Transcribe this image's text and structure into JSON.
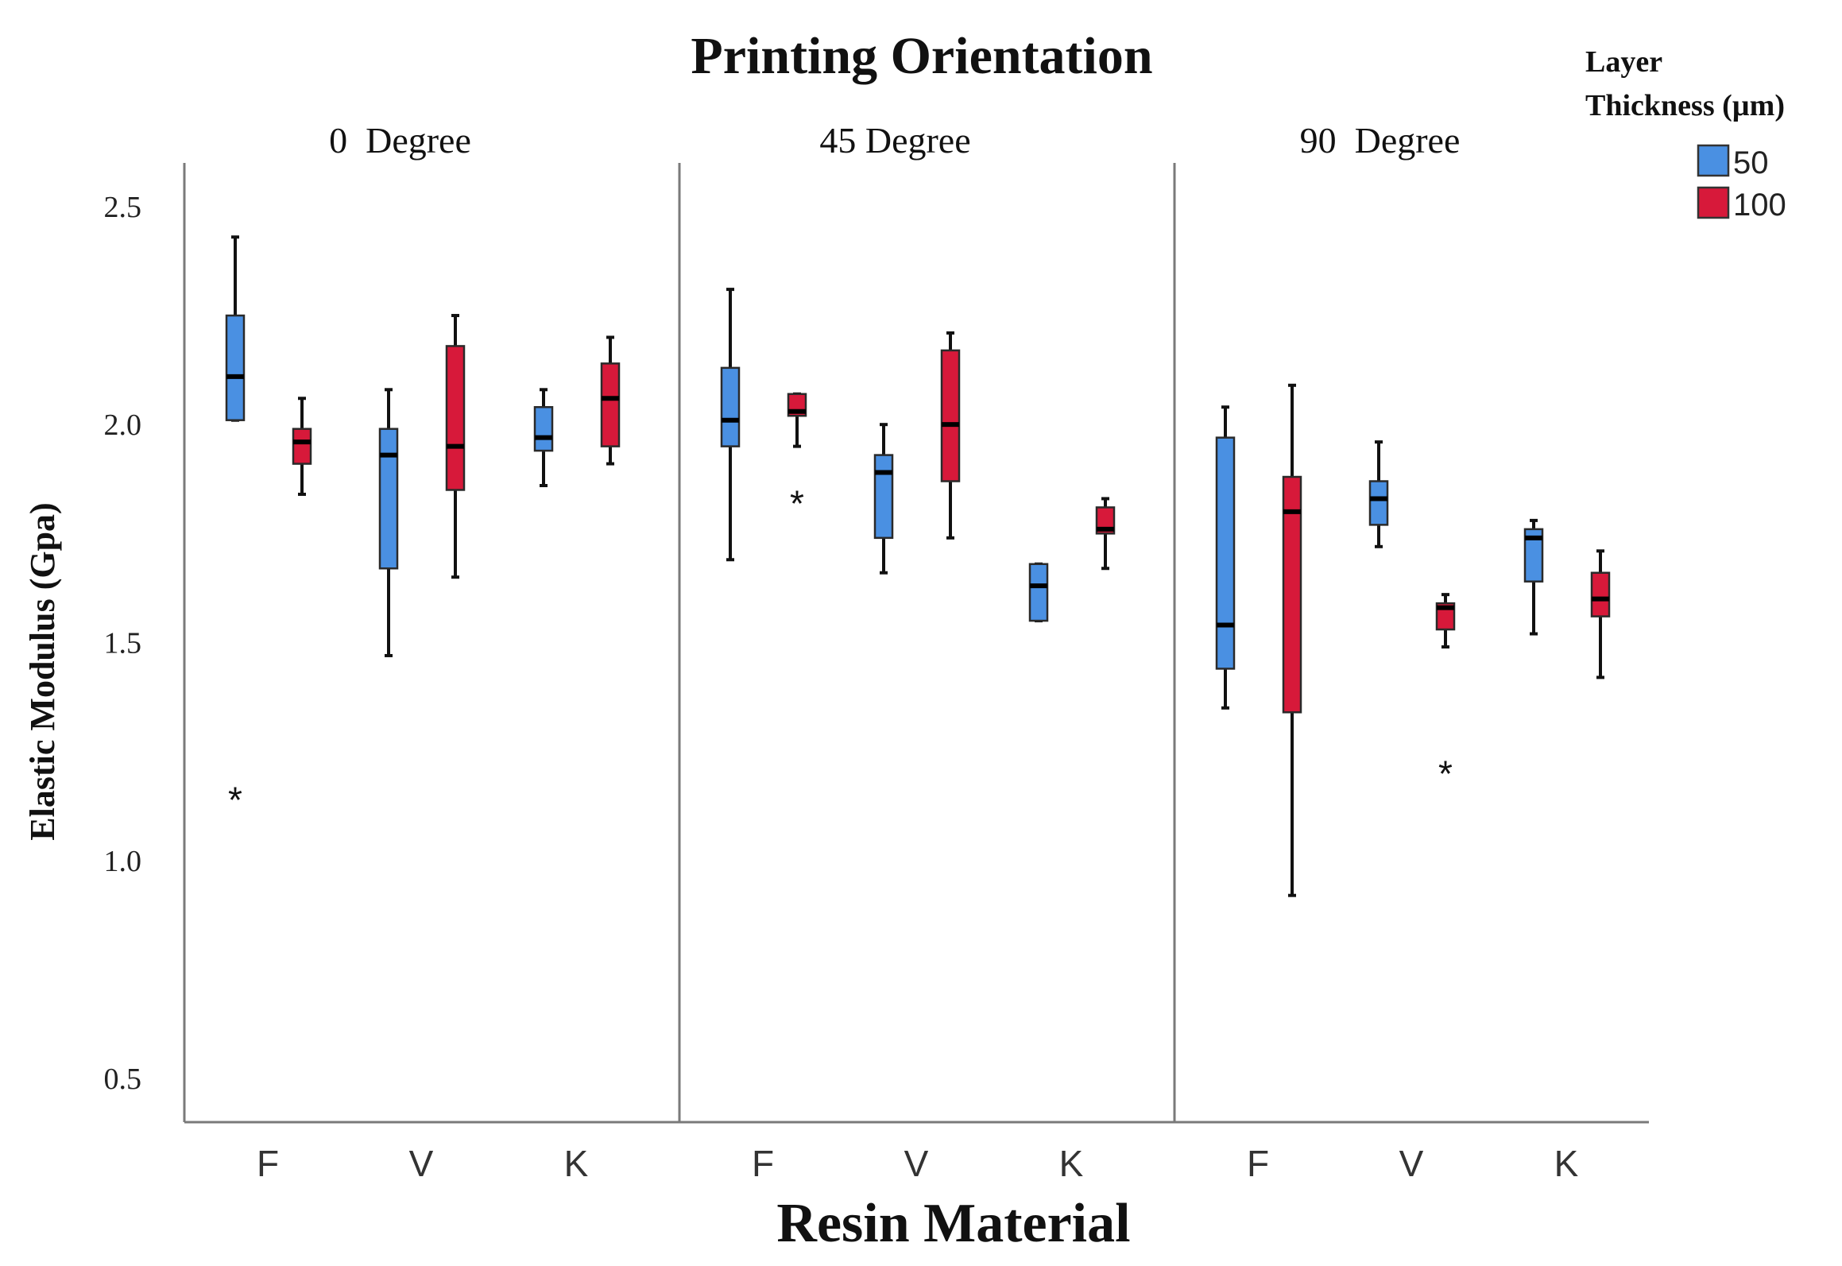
{
  "chart_data": {
    "type": "box",
    "title": "Printing Orientation",
    "xlabel": "Resin Material",
    "ylabel": "Elastic Modulus (Gpa)",
    "ylim": [
      0.4,
      2.6
    ],
    "yticks": [
      "0.5",
      "1.0",
      "1.5",
      "2.0",
      "2.5"
    ],
    "categories": [
      "F",
      "V",
      "K"
    ],
    "legend": {
      "title_line1": "Layer",
      "title_line2": "Thickness (µm)",
      "position": "top-right",
      "entries": [
        {
          "label": "50",
          "color": "#4a90e2"
        },
        {
          "label": "100",
          "color": "#d7193a"
        }
      ]
    },
    "panels": [
      {
        "label": "0  Degree",
        "groups": [
          {
            "category": "F",
            "series": "50",
            "min": 2.01,
            "q1": 2.01,
            "median": 2.11,
            "q3": 2.25,
            "max": 2.43,
            "outliers": [
              1.15
            ]
          },
          {
            "category": "F",
            "series": "100",
            "min": 1.84,
            "q1": 1.91,
            "median": 1.96,
            "q3": 1.99,
            "max": 2.06,
            "outliers": []
          },
          {
            "category": "V",
            "series": "50",
            "min": 1.47,
            "q1": 1.67,
            "median": 1.93,
            "q3": 1.99,
            "max": 2.08,
            "outliers": []
          },
          {
            "category": "V",
            "series": "100",
            "min": 1.65,
            "q1": 1.85,
            "median": 1.95,
            "q3": 2.18,
            "max": 2.25,
            "outliers": []
          },
          {
            "category": "K",
            "series": "50",
            "min": 1.86,
            "q1": 1.94,
            "median": 1.97,
            "q3": 2.04,
            "max": 2.08,
            "outliers": []
          },
          {
            "category": "K",
            "series": "100",
            "min": 1.91,
            "q1": 1.95,
            "median": 2.06,
            "q3": 2.14,
            "max": 2.2,
            "outliers": []
          }
        ]
      },
      {
        "label": "45 Degree",
        "groups": [
          {
            "category": "F",
            "series": "50",
            "min": 1.69,
            "q1": 1.95,
            "median": 2.01,
            "q3": 2.13,
            "max": 2.31,
            "outliers": []
          },
          {
            "category": "F",
            "series": "100",
            "min": 1.95,
            "q1": 2.02,
            "median": 2.03,
            "q3": 2.07,
            "max": 2.07,
            "outliers": [
              1.83
            ]
          },
          {
            "category": "V",
            "series": "50",
            "min": 1.66,
            "q1": 1.74,
            "median": 1.89,
            "q3": 1.93,
            "max": 2.0,
            "outliers": []
          },
          {
            "category": "V",
            "series": "100",
            "min": 1.74,
            "q1": 1.87,
            "median": 2.0,
            "q3": 2.17,
            "max": 2.21,
            "outliers": []
          },
          {
            "category": "K",
            "series": "50",
            "min": 1.55,
            "q1": 1.55,
            "median": 1.63,
            "q3": 1.68,
            "max": 1.68,
            "outliers": []
          },
          {
            "category": "K",
            "series": "100",
            "min": 1.67,
            "q1": 1.75,
            "median": 1.76,
            "q3": 1.81,
            "max": 1.83,
            "outliers": []
          }
        ]
      },
      {
        "label": "90  Degree",
        "groups": [
          {
            "category": "F",
            "series": "50",
            "min": 1.35,
            "q1": 1.44,
            "median": 1.54,
            "q3": 1.97,
            "max": 2.04,
            "outliers": []
          },
          {
            "category": "F",
            "series": "100",
            "min": 0.92,
            "q1": 1.34,
            "median": 1.8,
            "q3": 1.88,
            "max": 2.09,
            "outliers": []
          },
          {
            "category": "V",
            "series": "50",
            "min": 1.72,
            "q1": 1.77,
            "median": 1.83,
            "q3": 1.87,
            "max": 1.96,
            "outliers": []
          },
          {
            "category": "V",
            "series": "100",
            "min": 1.49,
            "q1": 1.53,
            "median": 1.58,
            "q3": 1.59,
            "max": 1.61,
            "outliers": [
              1.21
            ]
          },
          {
            "category": "K",
            "series": "50",
            "min": 1.52,
            "q1": 1.64,
            "median": 1.74,
            "q3": 1.76,
            "max": 1.78,
            "outliers": []
          },
          {
            "category": "K",
            "series": "100",
            "min": 1.42,
            "q1": 1.56,
            "median": 1.6,
            "q3": 1.66,
            "max": 1.71,
            "outliers": []
          }
        ]
      }
    ]
  }
}
